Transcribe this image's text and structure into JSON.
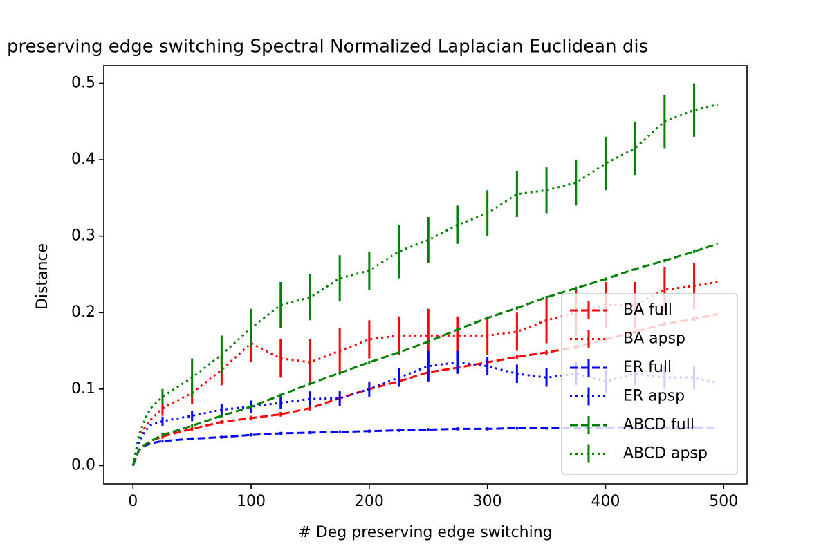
{
  "chart_data": {
    "type": "errorbar-line",
    "title": "preserving edge switching Spectral Normalized Laplacian Euclidean dis",
    "x_label": "# Deg preserving edge switching",
    "y_label": "Distance",
    "x": [
      0,
      5,
      10,
      15,
      25,
      50,
      75,
      100,
      125,
      150,
      175,
      200,
      225,
      250,
      275,
      300,
      325,
      350,
      375,
      400,
      425,
      450,
      475,
      495
    ],
    "xlim": [
      -24.75,
      519.75
    ],
    "ylim": [
      -0.024,
      0.523
    ],
    "xticks": [
      0,
      100,
      200,
      300,
      400,
      500
    ],
    "yticks": [
      {
        "value": 0,
        "label": "0.0"
      },
      0.1,
      0.2,
      0.3,
      0.4,
      0.5
    ],
    "legend": "lower right",
    "series": [
      {
        "name": "BA full",
        "color": "#ff0000",
        "linestyle": "dashed",
        "values": [
          0,
          0.02,
          0.027,
          0.032,
          0.038,
          0.048,
          0.057,
          0.062,
          0.067,
          0.075,
          0.088,
          0.1,
          0.11,
          0.122,
          0.128,
          0.135,
          0.142,
          0.148,
          0.155,
          0.165,
          0.175,
          0.185,
          0.192,
          0.198
        ],
        "errors": [
          null,
          null,
          null,
          null,
          0.003,
          0.003,
          0.003,
          0.003,
          0.003,
          0.003,
          0.003,
          0.003,
          0.003,
          0.003,
          0.003,
          0.003,
          0.003,
          0.003,
          0.003,
          0.003,
          0.003,
          0.003,
          0.003,
          null
        ]
      },
      {
        "name": "BA apsp",
        "color": "#ff0000",
        "linestyle": "dotted",
        "values": [
          0,
          0.035,
          0.05,
          0.06,
          0.075,
          0.095,
          0.125,
          0.16,
          0.14,
          0.135,
          0.15,
          0.165,
          0.17,
          0.17,
          0.17,
          0.17,
          0.175,
          0.19,
          0.2,
          0.21,
          0.21,
          0.23,
          0.235,
          0.24
        ],
        "errors": [
          null,
          null,
          null,
          null,
          0.01,
          0.015,
          0.02,
          0.025,
          0.025,
          0.03,
          0.03,
          0.025,
          0.025,
          0.035,
          0.025,
          0.025,
          0.025,
          0.03,
          0.03,
          0.03,
          0.03,
          0.03,
          0.03,
          null
        ]
      },
      {
        "name": "ER full",
        "color": "#0000ff",
        "linestyle": "dashed",
        "values": [
          0,
          0.02,
          0.026,
          0.029,
          0.032,
          0.035,
          0.037,
          0.04,
          0.042,
          0.043,
          0.044,
          0.045,
          0.046,
          0.047,
          0.048,
          0.048,
          0.049,
          0.049,
          0.049,
          0.05,
          0.05,
          0.05,
          0.05,
          0.05
        ],
        "errors": [
          null,
          null,
          null,
          null,
          0.002,
          0.002,
          0.002,
          0.002,
          0.002,
          0.002,
          0.002,
          0.002,
          0.002,
          0.002,
          0.002,
          0.002,
          0.002,
          0.002,
          0.002,
          0.002,
          0.002,
          0.002,
          0.002,
          null
        ]
      },
      {
        "name": "ER apsp",
        "color": "#0000ff",
        "linestyle": "dotted",
        "values": [
          0,
          0.03,
          0.045,
          0.053,
          0.058,
          0.065,
          0.073,
          0.077,
          0.082,
          0.087,
          0.088,
          0.1,
          0.115,
          0.13,
          0.135,
          0.13,
          0.12,
          0.115,
          0.12,
          0.11,
          0.12,
          0.115,
          0.115,
          0.108
        ],
        "errors": [
          null,
          null,
          null,
          null,
          0.006,
          0.007,
          0.008,
          0.008,
          0.008,
          0.01,
          0.01,
          0.01,
          0.012,
          0.02,
          0.015,
          0.012,
          0.012,
          0.012,
          0.015,
          0.015,
          0.015,
          0.015,
          0.015,
          null
        ]
      },
      {
        "name": "ABCD full",
        "color": "#008000",
        "linestyle": "dashed",
        "values": [
          0,
          0.02,
          0.027,
          0.032,
          0.04,
          0.052,
          0.065,
          0.077,
          0.092,
          0.107,
          0.121,
          0.135,
          0.148,
          0.162,
          0.178,
          0.193,
          0.206,
          0.22,
          0.232,
          0.244,
          0.257,
          0.268,
          0.28,
          0.29
        ],
        "errors": [
          null,
          null,
          null,
          null,
          0.002,
          0.002,
          0.002,
          0.002,
          0.002,
          0.002,
          0.002,
          0.002,
          0.002,
          0.002,
          0.002,
          0.002,
          0.002,
          0.002,
          0.002,
          0.002,
          0.002,
          0.002,
          0.002,
          null
        ]
      },
      {
        "name": "ABCD apsp",
        "color": "#008000",
        "linestyle": "dotted",
        "values": [
          0,
          0.04,
          0.06,
          0.075,
          0.09,
          0.115,
          0.145,
          0.18,
          0.21,
          0.22,
          0.245,
          0.255,
          0.28,
          0.295,
          0.315,
          0.33,
          0.355,
          0.36,
          0.37,
          0.395,
          0.415,
          0.45,
          0.465,
          0.472
        ],
        "errors": [
          null,
          null,
          null,
          null,
          0.01,
          0.025,
          0.025,
          0.025,
          0.03,
          0.03,
          0.03,
          0.025,
          0.035,
          0.03,
          0.025,
          0.03,
          0.03,
          0.03,
          0.03,
          0.035,
          0.035,
          0.035,
          0.035,
          null
        ]
      }
    ]
  }
}
